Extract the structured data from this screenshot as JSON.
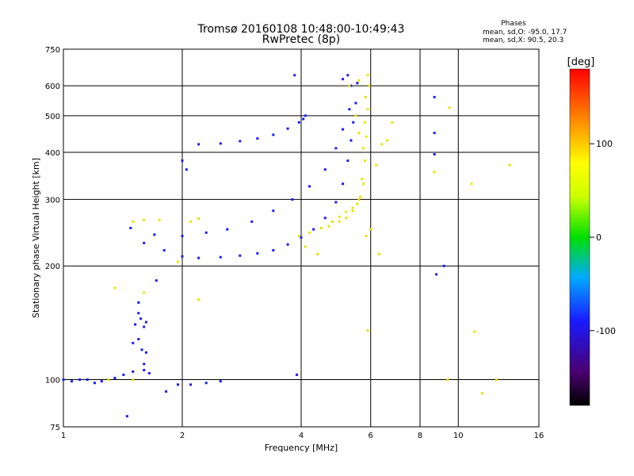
{
  "chart_data": {
    "type": "scatter",
    "title": "Tromsø 20160108 10:48:00-10:49:43",
    "subtitle": "RwPretec (8p)",
    "annotation": {
      "title": "Phases",
      "line1": "mean, sd,O: -95.0, 17.7",
      "line2": "mean, sd,X:  90.5, 20.3"
    },
    "xlabel": "Frequency [MHz]",
    "ylabel": "Stationary phase Virtual Height [km]",
    "x_scale": "log",
    "y_scale": "log",
    "xlim": [
      1,
      16
    ],
    "ylim": [
      75,
      750
    ],
    "x_ticks": [
      1,
      2,
      4,
      6,
      8,
      10,
      16
    ],
    "x_tick_labels": [
      "1",
      "2",
      "4",
      "6",
      "8",
      "10",
      "16"
    ],
    "y_ticks": [
      75,
      100,
      200,
      300,
      400,
      500,
      600,
      750
    ],
    "y_tick_labels": [
      "75",
      "100",
      "200",
      "300",
      "400",
      "500",
      "600",
      "750"
    ],
    "grid": true,
    "colorbar": {
      "label": "[deg]",
      "range": [
        -180,
        180
      ],
      "ticks": [
        100,
        0,
        -100
      ],
      "tick_labels": [
        "100",
        "0",
        "-100"
      ]
    },
    "series": [
      {
        "mode": "O",
        "color_deg": -95,
        "points": [
          [
            1.0,
            100
          ],
          [
            1.05,
            99
          ],
          [
            1.1,
            100
          ],
          [
            1.15,
            100
          ],
          [
            1.2,
            98
          ],
          [
            1.25,
            99
          ],
          [
            1.3,
            100
          ],
          [
            1.35,
            101
          ],
          [
            1.42,
            103
          ],
          [
            1.5,
            105
          ],
          [
            1.6,
            106
          ],
          [
            1.65,
            104
          ],
          [
            1.5,
            125
          ],
          [
            1.55,
            128
          ],
          [
            1.58,
            120
          ],
          [
            1.62,
            118
          ],
          [
            1.6,
            110
          ],
          [
            1.52,
            140
          ],
          [
            1.55,
            150
          ],
          [
            1.57,
            145
          ],
          [
            1.6,
            138
          ],
          [
            1.62,
            142
          ],
          [
            1.55,
            160
          ],
          [
            1.48,
            252
          ],
          [
            1.6,
            230
          ],
          [
            1.8,
            220
          ],
          [
            2.0,
            212
          ],
          [
            2.2,
            210
          ],
          [
            2.5,
            211
          ],
          [
            2.8,
            213
          ],
          [
            3.1,
            216
          ],
          [
            3.4,
            220
          ],
          [
            3.7,
            228
          ],
          [
            4.0,
            238
          ],
          [
            4.3,
            250
          ],
          [
            4.6,
            268
          ],
          [
            4.9,
            295
          ],
          [
            5.1,
            330
          ],
          [
            5.25,
            380
          ],
          [
            5.35,
            430
          ],
          [
            5.42,
            480
          ],
          [
            5.5,
            540
          ],
          [
            5.55,
            610
          ],
          [
            1.7,
            242
          ],
          [
            2.0,
            240
          ],
          [
            2.3,
            245
          ],
          [
            2.6,
            250
          ],
          [
            3.0,
            262
          ],
          [
            3.4,
            280
          ],
          [
            3.8,
            300
          ],
          [
            4.2,
            325
          ],
          [
            4.6,
            360
          ],
          [
            4.9,
            410
          ],
          [
            5.1,
            460
          ],
          [
            5.3,
            520
          ],
          [
            5.35,
            600
          ],
          [
            2.2,
            420
          ],
          [
            2.5,
            422
          ],
          [
            2.8,
            428
          ],
          [
            3.1,
            435
          ],
          [
            3.4,
            445
          ],
          [
            3.7,
            462
          ],
          [
            3.95,
            480
          ],
          [
            4.05,
            490
          ],
          [
            4.1,
            500
          ],
          [
            2.05,
            360
          ],
          [
            2.0,
            380
          ],
          [
            3.85,
            640
          ],
          [
            5.1,
            625
          ],
          [
            5.25,
            640
          ],
          [
            2.3,
            98
          ],
          [
            2.1,
            97
          ],
          [
            1.95,
            97
          ],
          [
            2.5,
            99
          ],
          [
            1.82,
            93
          ],
          [
            1.72,
            183
          ],
          [
            1.45,
            80
          ],
          [
            3.9,
            103
          ],
          [
            8.8,
            190
          ],
          [
            9.2,
            200
          ],
          [
            8.7,
            560
          ],
          [
            8.7,
            450
          ],
          [
            8.7,
            395
          ]
        ]
      },
      {
        "mode": "X",
        "color_deg": 90,
        "points": [
          [
            3.95,
            240
          ],
          [
            4.2,
            245
          ],
          [
            4.5,
            252
          ],
          [
            4.8,
            262
          ],
          [
            5.0,
            270
          ],
          [
            5.2,
            278
          ],
          [
            5.4,
            285
          ],
          [
            5.55,
            292
          ],
          [
            5.65,
            305
          ],
          [
            5.75,
            330
          ],
          [
            5.8,
            380
          ],
          [
            5.85,
            440
          ],
          [
            5.9,
            520
          ],
          [
            5.95,
            600
          ],
          [
            4.7,
            255
          ],
          [
            5.0,
            262
          ],
          [
            5.2,
            268
          ],
          [
            5.4,
            280
          ],
          [
            5.6,
            300
          ],
          [
            5.7,
            340
          ],
          [
            5.75,
            410
          ],
          [
            5.8,
            480
          ],
          [
            5.82,
            560
          ],
          [
            5.3,
            600
          ],
          [
            5.6,
            620
          ],
          [
            5.9,
            640
          ],
          [
            5.5,
            500
          ],
          [
            5.6,
            450
          ],
          [
            6.4,
            420
          ],
          [
            6.6,
            430
          ],
          [
            6.2,
            370
          ],
          [
            6.8,
            480
          ],
          [
            6.0,
            250
          ],
          [
            6.3,
            215
          ],
          [
            5.9,
            135
          ],
          [
            5.85,
            240
          ],
          [
            4.4,
            215
          ],
          [
            4.1,
            225
          ],
          [
            2.2,
            163
          ],
          [
            1.95,
            205
          ],
          [
            1.5,
            262
          ],
          [
            1.6,
            265
          ],
          [
            1.75,
            265
          ],
          [
            2.1,
            262
          ],
          [
            2.2,
            267
          ],
          [
            1.6,
            170
          ],
          [
            1.5,
            100
          ],
          [
            1.3,
            100
          ],
          [
            1.35,
            175
          ],
          [
            9.5,
            525
          ],
          [
            10.8,
            330
          ],
          [
            11.0,
            134
          ],
          [
            11.5,
            92
          ],
          [
            12.5,
            100
          ],
          [
            13.5,
            370
          ],
          [
            8.7,
            355
          ],
          [
            9.4,
            100
          ]
        ]
      }
    ]
  }
}
